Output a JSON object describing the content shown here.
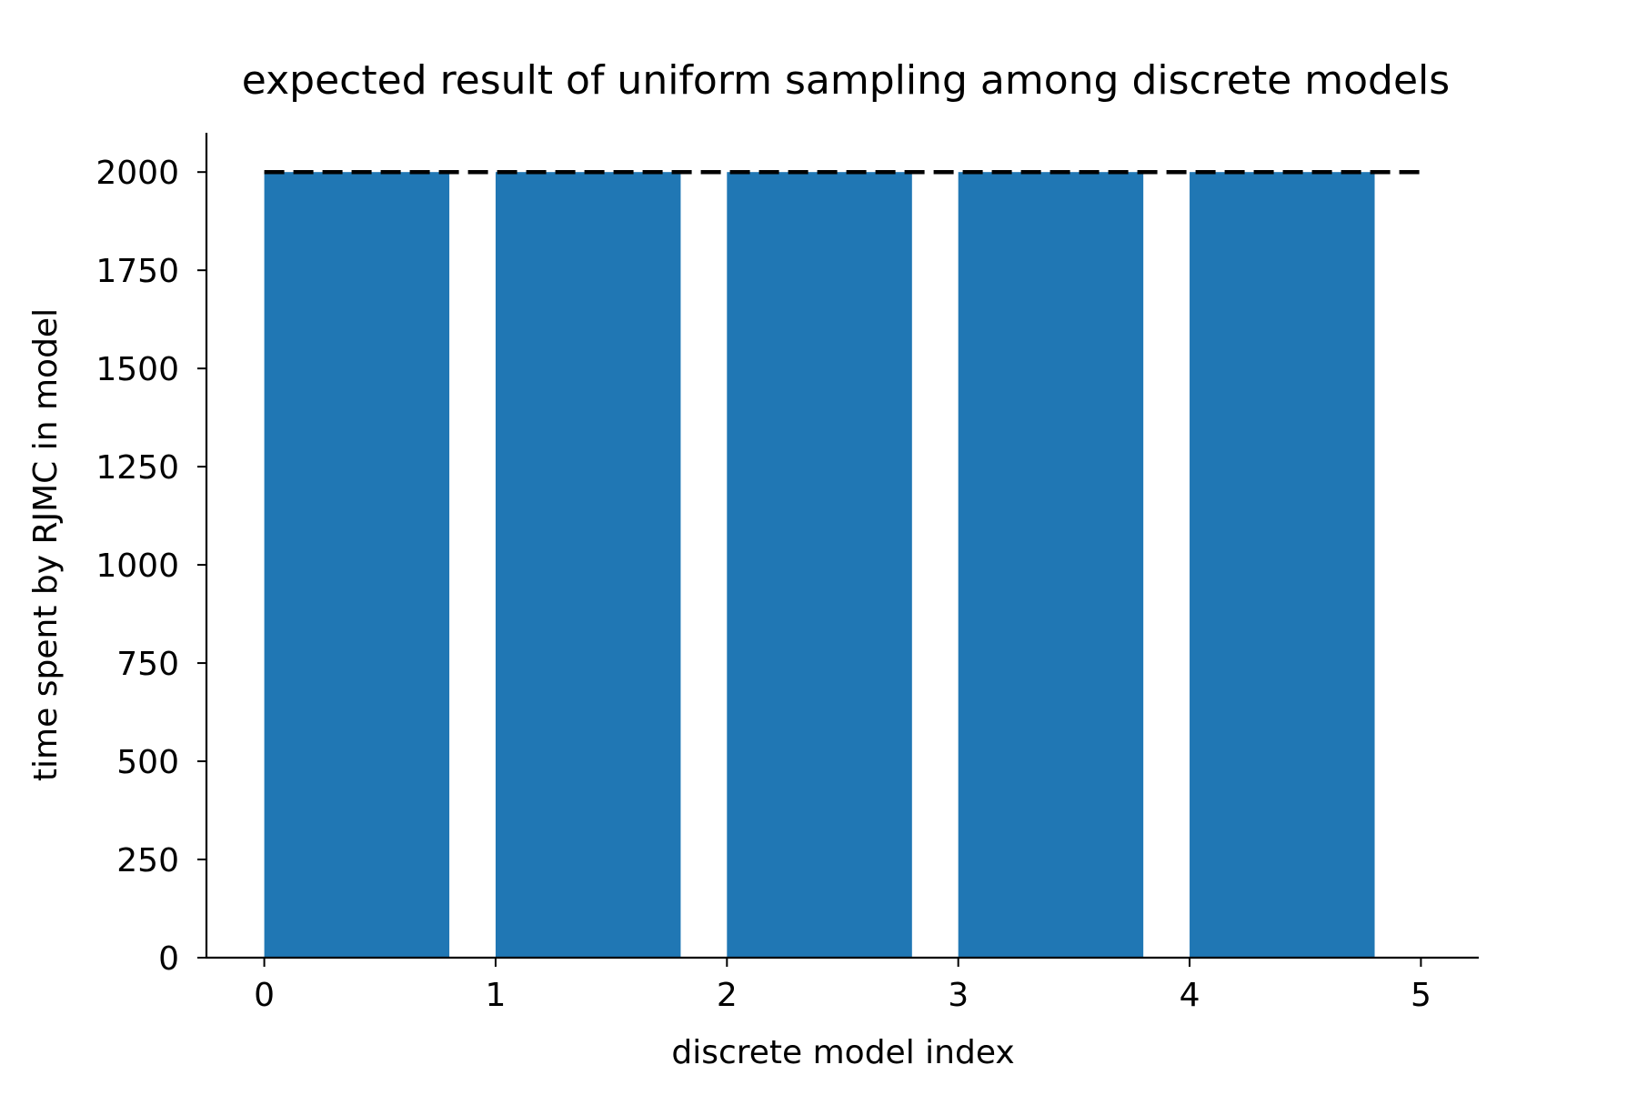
{
  "chart_data": {
    "type": "bar",
    "title": "expected result of uniform sampling among discrete models",
    "xlabel": "discrete model index",
    "ylabel": "time spent by RJMC in model",
    "x": [
      0,
      1,
      2,
      3,
      4
    ],
    "values": [
      2000,
      2000,
      2000,
      2000,
      2000
    ],
    "bar_width": 0.8,
    "bar_align": "edge",
    "bar_color": "#2077b4",
    "xlim": [
      -0.25,
      5.25
    ],
    "ylim": [
      0,
      2100
    ],
    "xticks": [
      0,
      1,
      2,
      3,
      4,
      5
    ],
    "xtick_labels": [
      "0",
      "1",
      "2",
      "3",
      "4",
      "5"
    ],
    "yticks": [
      0,
      250,
      500,
      750,
      1000,
      1250,
      1500,
      1750,
      2000
    ],
    "ytick_labels": [
      "0",
      "250",
      "500",
      "750",
      "1000",
      "1250",
      "1500",
      "1750",
      "2000"
    ],
    "reference_line": {
      "y": 2000,
      "x_range": [
        0,
        5
      ],
      "style": "dashed",
      "color": "#000000"
    },
    "grid": false,
    "legend": "none",
    "spines": [
      "left",
      "bottom"
    ]
  }
}
